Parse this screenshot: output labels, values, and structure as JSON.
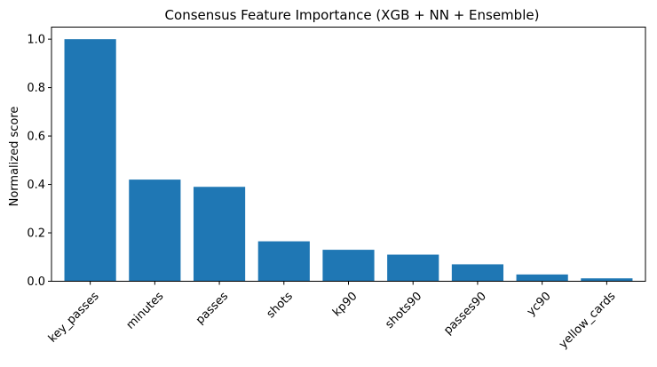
{
  "chart_data": {
    "type": "bar",
    "title": "Consensus Feature Importance (XGB + NN + Ensemble)",
    "xlabel": "",
    "ylabel": "Normalized score",
    "categories": [
      "key_passes",
      "minutes",
      "passes",
      "shots",
      "kp90",
      "shots90",
      "passes90",
      "yc90",
      "yellow_cards"
    ],
    "values": [
      1.0,
      0.42,
      0.39,
      0.165,
      0.13,
      0.11,
      0.07,
      0.028,
      0.012
    ],
    "ylim": [
      0,
      1.05
    ],
    "yticks": [
      0.0,
      0.2,
      0.4,
      0.6,
      0.8,
      1.0
    ],
    "ytick_labels": [
      "0.0",
      "0.2",
      "0.4",
      "0.6",
      "0.8",
      "1.0"
    ],
    "grid": false,
    "legend": "none",
    "bar_color": "#1f77b4"
  }
}
